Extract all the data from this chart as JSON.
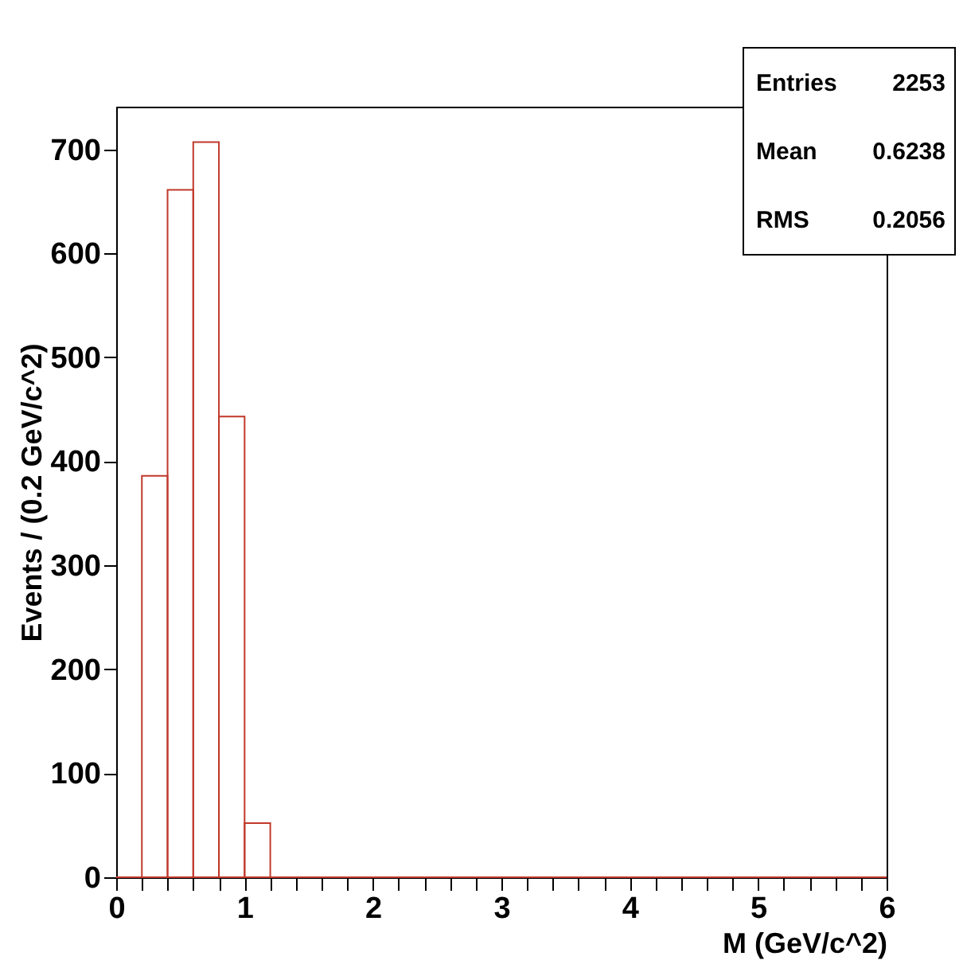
{
  "chart_data": {
    "type": "histogram",
    "xlabel": "M (GeV/c^2)",
    "ylabel": "Events / (0.2 GeV/c^2)",
    "color": "#c0392b",
    "bins": [
      0,
      0.2,
      0.4,
      0.6,
      0.8,
      1.0,
      1.2,
      1.4,
      1.6,
      1.8,
      2.0,
      2.2,
      2.4,
      2.6,
      2.8,
      3.0,
      3.2,
      3.4,
      3.6,
      3.8,
      4.0,
      4.2,
      4.4,
      4.6,
      4.8,
      5.0,
      5.2,
      5.4,
      5.6,
      5.8,
      6.0
    ],
    "values": [
      0,
      386,
      661,
      707,
      443,
      52,
      0,
      0,
      0,
      0,
      0,
      0,
      0,
      0,
      0,
      0,
      0,
      0,
      0,
      0,
      0,
      0,
      0,
      0,
      0,
      0,
      0,
      0,
      0,
      0
    ],
    "xlim": [
      0,
      6
    ],
    "ylim": [
      0,
      741
    ],
    "xticks": [
      0,
      {
        "value": 0.2,
        "label": null
      },
      {
        "value": 0.4,
        "label": null
      },
      {
        "value": 0.6,
        "label": null
      },
      {
        "value": 0.8,
        "label": null
      },
      1,
      {
        "value": 1.2,
        "label": null
      },
      {
        "value": 1.4,
        "label": null
      },
      {
        "value": 1.6,
        "label": null
      },
      {
        "value": 1.8,
        "label": null
      },
      2,
      {
        "value": 2.2,
        "label": null
      },
      {
        "value": 2.4,
        "label": null
      },
      {
        "value": 2.6,
        "label": null
      },
      {
        "value": 2.8,
        "label": null
      },
      3,
      {
        "value": 3.2,
        "label": null
      },
      {
        "value": 3.4,
        "label": null
      },
      {
        "value": 3.6,
        "label": null
      },
      {
        "value": 3.8,
        "label": null
      },
      4,
      {
        "value": 4.2,
        "label": null
      },
      {
        "value": 4.4,
        "label": null
      },
      {
        "value": 4.6,
        "label": null
      },
      {
        "value": 4.8,
        "label": null
      },
      5,
      {
        "value": 5.2,
        "label": null
      },
      {
        "value": 5.4,
        "label": null
      },
      {
        "value": 5.6,
        "label": null
      },
      {
        "value": 5.8,
        "label": null
      },
      6
    ],
    "yticks": [
      0,
      100,
      200,
      300,
      400,
      500,
      600,
      700
    ],
    "annotations": [
      "Entries",
      "2253",
      "Mean",
      "0.6238",
      "RMS",
      "0.2056"
    ],
    "grid": false
  }
}
